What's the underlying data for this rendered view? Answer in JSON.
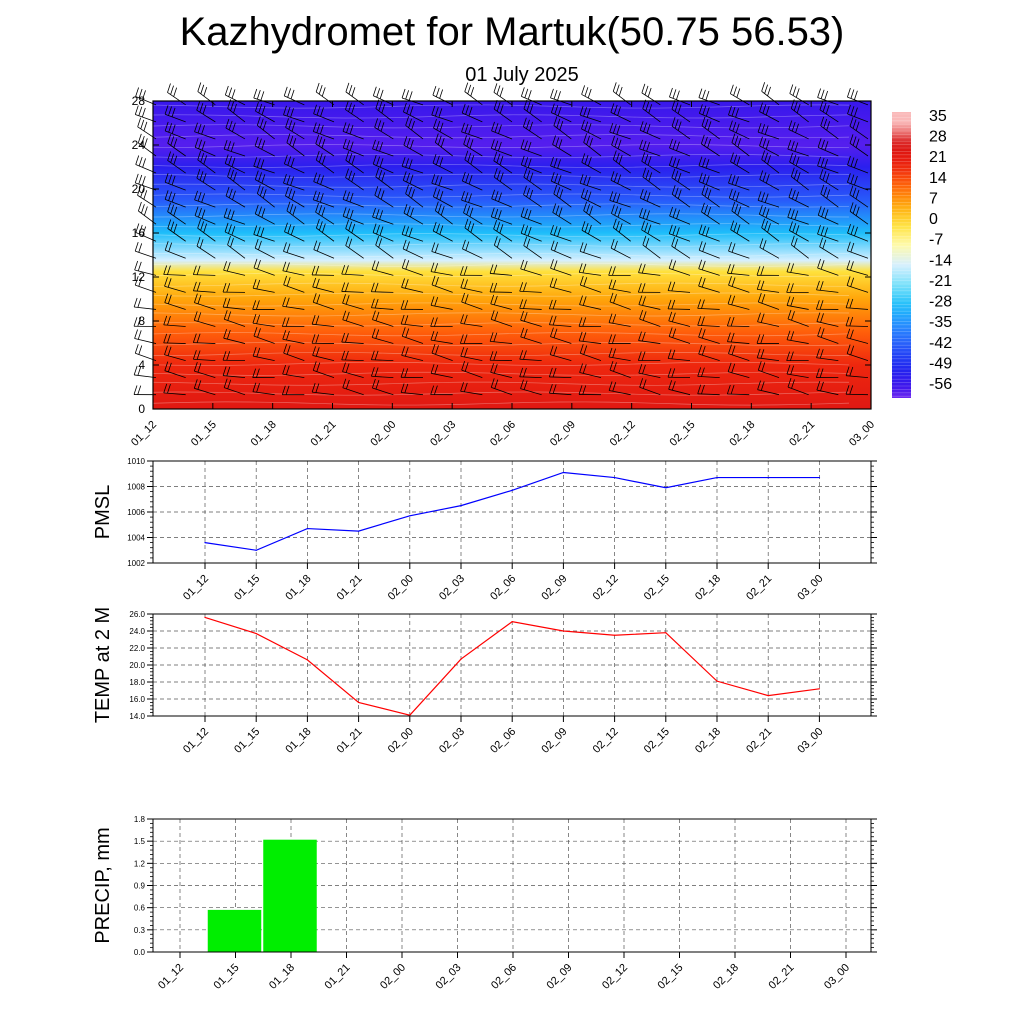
{
  "header": {
    "title": "Kazhydromet for Martuk(50.75 56.53)",
    "subtitle": "01 July 2025"
  },
  "time_labels": [
    "01_12",
    "01_15",
    "01_18",
    "01_21",
    "02_00",
    "02_03",
    "02_06",
    "02_09",
    "02_12",
    "02_15",
    "02_18",
    "02_21",
    "03_00"
  ],
  "colors": {
    "pmsl_line": "#0000ff",
    "temp_line": "#ff0000",
    "precip_bar": "#00ee00",
    "barb": "#000000"
  },
  "colorbar": {
    "labels": [
      "35",
      "28",
      "21",
      "14",
      "7",
      "0",
      "-7",
      "-14",
      "-21",
      "-28",
      "-35",
      "-42",
      "-49",
      "-56"
    ]
  },
  "chart_data": [
    {
      "type": "heatmap",
      "title": "",
      "xlabel": "",
      "ylabel": "",
      "x": [
        "01_12",
        "01_15",
        "01_18",
        "01_21",
        "02_00",
        "02_03",
        "02_06",
        "02_09",
        "02_12",
        "02_15",
        "02_18",
        "02_21",
        "03_00"
      ],
      "ylim": [
        0,
        28
      ],
      "yticks": [
        "0",
        "4",
        "8",
        "12",
        "16",
        "20",
        "24",
        "28"
      ],
      "value_range": [
        -56,
        35
      ],
      "profile_temperature_by_height": [
        {
          "height": 0,
          "value": 25
        },
        {
          "height": 4,
          "value": 20
        },
        {
          "height": 7,
          "value": 14
        },
        {
          "height": 10,
          "value": 7
        },
        {
          "height": 12.5,
          "value": 0
        },
        {
          "height": 13.5,
          "value": -14
        },
        {
          "height": 16,
          "value": -28
        },
        {
          "height": 19,
          "value": -42
        },
        {
          "height": 22,
          "value": -52
        },
        {
          "height": 24,
          "value": -58
        },
        {
          "height": 28,
          "value": -55
        }
      ],
      "overlay": "wind barbs"
    },
    {
      "type": "line",
      "title": "",
      "xlabel": "",
      "ylabel": "PMSL",
      "x": [
        "01_12",
        "01_15",
        "01_18",
        "01_21",
        "02_00",
        "02_03",
        "02_06",
        "02_09",
        "02_12",
        "02_15",
        "02_18",
        "02_21",
        "03_00"
      ],
      "ylim": [
        1002,
        1010
      ],
      "yticks": [
        "1002",
        "1004",
        "1006",
        "1008",
        "1010"
      ],
      "grid": true,
      "series": [
        {
          "values": [
            1003.6,
            1003.0,
            1004.7,
            1004.5,
            1005.7,
            1006.5,
            1007.7,
            1009.1,
            1008.7,
            1007.9,
            1008.7,
            1008.7,
            1008.7
          ]
        }
      ]
    },
    {
      "type": "line",
      "title": "",
      "xlabel": "",
      "ylabel": "TEMP at 2 M",
      "x": [
        "01_12",
        "01_15",
        "01_18",
        "01_21",
        "02_00",
        "02_03",
        "02_06",
        "02_09",
        "02_12",
        "02_15",
        "02_18",
        "02_21",
        "03_00"
      ],
      "ylim": [
        14.0,
        26.0
      ],
      "yticks": [
        "14.0",
        "16.0",
        "18.0",
        "20.0",
        "22.0",
        "24.0",
        "26.0"
      ],
      "grid": true,
      "series": [
        {
          "values": [
            25.6,
            23.7,
            20.6,
            15.6,
            14.1,
            20.7,
            25.1,
            24.0,
            23.5,
            23.8,
            18.1,
            16.4,
            17.2
          ]
        }
      ]
    },
    {
      "type": "bar",
      "title": "",
      "xlabel": "",
      "ylabel": "PRECIP, mm",
      "categories": [
        "01_12",
        "01_15",
        "01_18",
        "01_21",
        "02_00",
        "02_03",
        "02_06",
        "02_09",
        "02_12",
        "02_15",
        "02_18",
        "02_21",
        "03_00"
      ],
      "values": [
        0,
        0.57,
        1.52,
        0,
        0,
        0,
        0,
        0,
        0,
        0,
        0,
        0,
        0
      ],
      "ylim": [
        0,
        1.8
      ],
      "yticks": [
        "0.0",
        "0.3",
        "0.6",
        "0.9",
        "1.2",
        "1.5",
        "1.8"
      ],
      "grid": true
    }
  ]
}
